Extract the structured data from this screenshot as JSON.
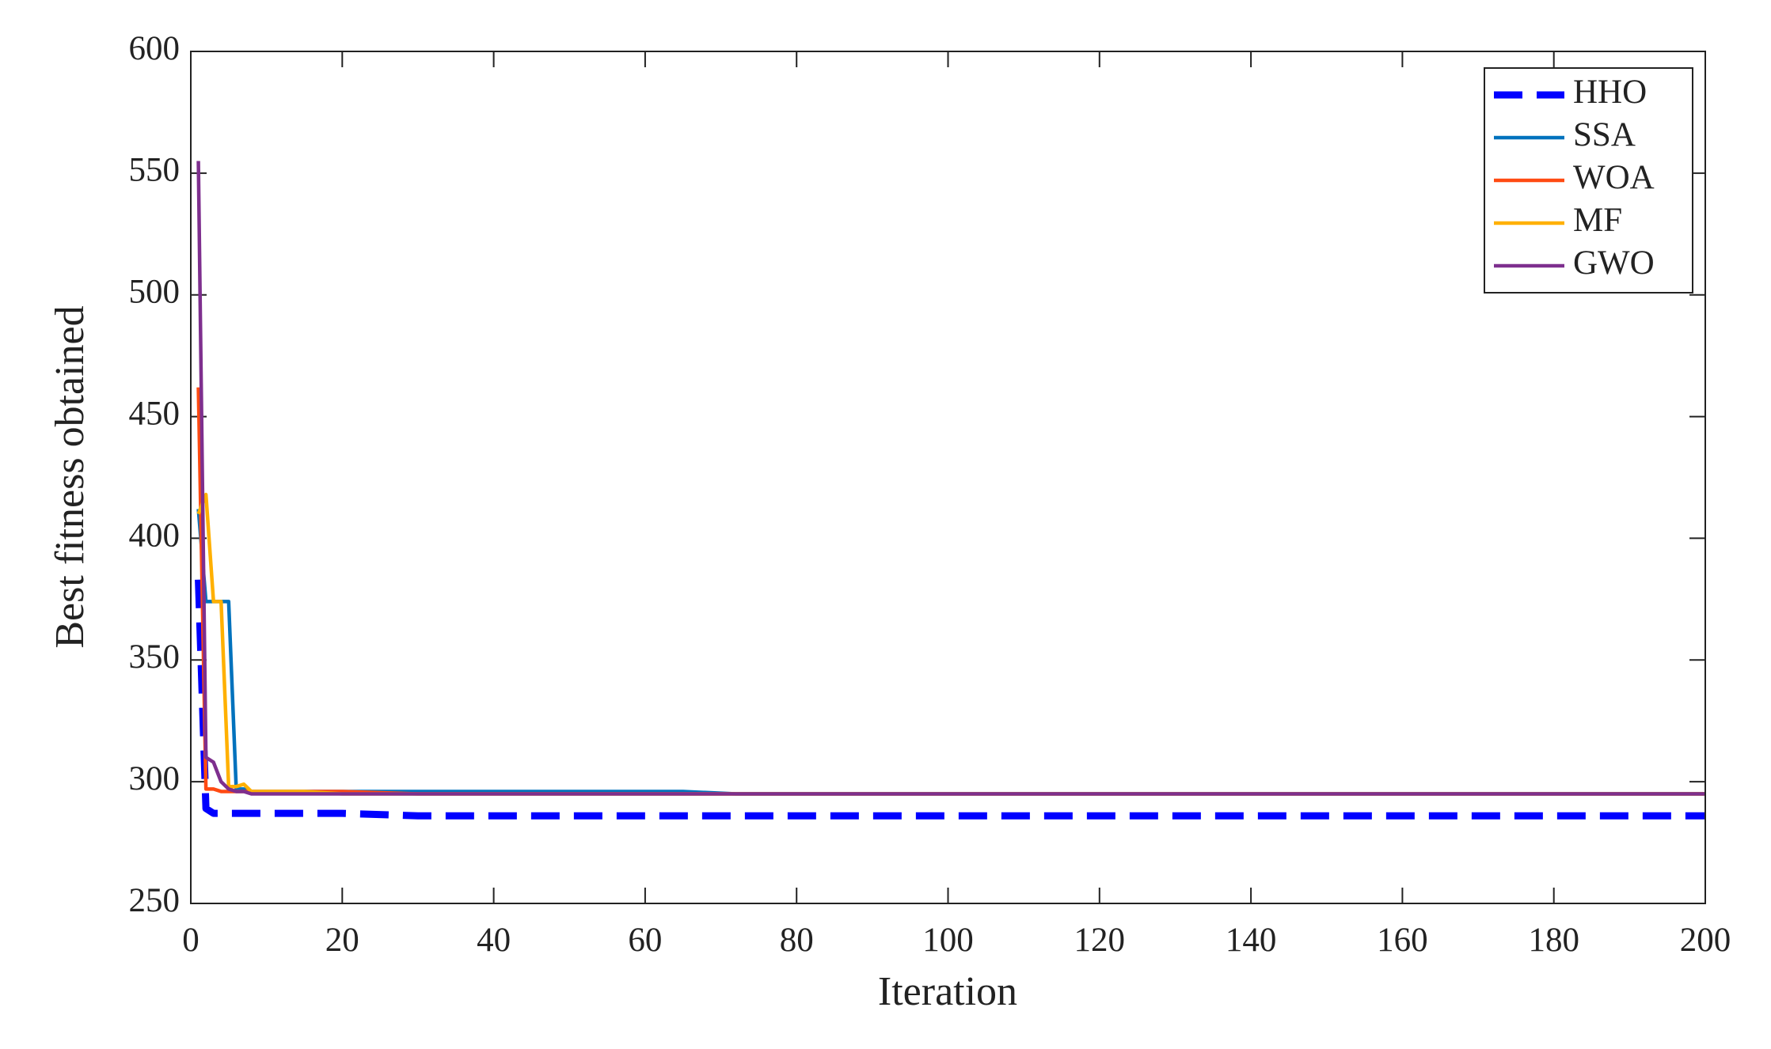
{
  "chart_data": {
    "type": "line",
    "xlabel": "Iteration",
    "ylabel": "Best fitness obtained",
    "x": [
      1,
      2,
      3,
      4,
      5,
      6,
      7,
      8,
      10,
      15,
      20,
      30,
      50,
      65,
      72,
      100,
      150,
      200
    ],
    "series": [
      {
        "name": "HHO",
        "color": "#0000ff",
        "linestyle": "dashed",
        "values": [
          383,
          289,
          287,
          287,
          287,
          287,
          287,
          287,
          287,
          287,
          287,
          286,
          286,
          286,
          286,
          286,
          286,
          286
        ]
      },
      {
        "name": "SSA",
        "color": "#0072bd",
        "linestyle": "solid",
        "values": [
          412,
          374,
          374,
          374,
          374,
          297,
          297,
          296,
          296,
          296,
          296,
          296,
          296,
          296,
          295,
          295,
          295,
          295
        ]
      },
      {
        "name": "WOA",
        "color": "#ff4a12",
        "linestyle": "solid",
        "values": [
          462,
          297,
          297,
          296,
          296,
          296,
          296,
          296,
          296,
          296,
          296,
          295,
          295,
          295,
          295,
          295,
          295,
          295
        ]
      },
      {
        "name": "MF",
        "color": "#ffb000",
        "linestyle": "solid",
        "values": [
          410,
          418,
          374,
          374,
          298,
          298,
          299,
          296,
          296,
          296,
          295,
          295,
          295,
          295,
          295,
          295,
          295,
          295
        ]
      },
      {
        "name": "GWO",
        "color": "#7e2f8e",
        "linestyle": "solid",
        "values": [
          555,
          310,
          308,
          300,
          297,
          296,
          296,
          295,
          295,
          295,
          295,
          295,
          295,
          295,
          295,
          295,
          295,
          295
        ]
      }
    ],
    "xlim": [
      0,
      200
    ],
    "xticks": [
      0,
      20,
      40,
      60,
      80,
      100,
      120,
      140,
      160,
      180,
      200
    ],
    "ylim": [
      250,
      600
    ],
    "yticks": [
      250,
      300,
      350,
      400,
      450,
      500,
      550,
      600
    ],
    "grid": false,
    "legend": "upper right"
  }
}
